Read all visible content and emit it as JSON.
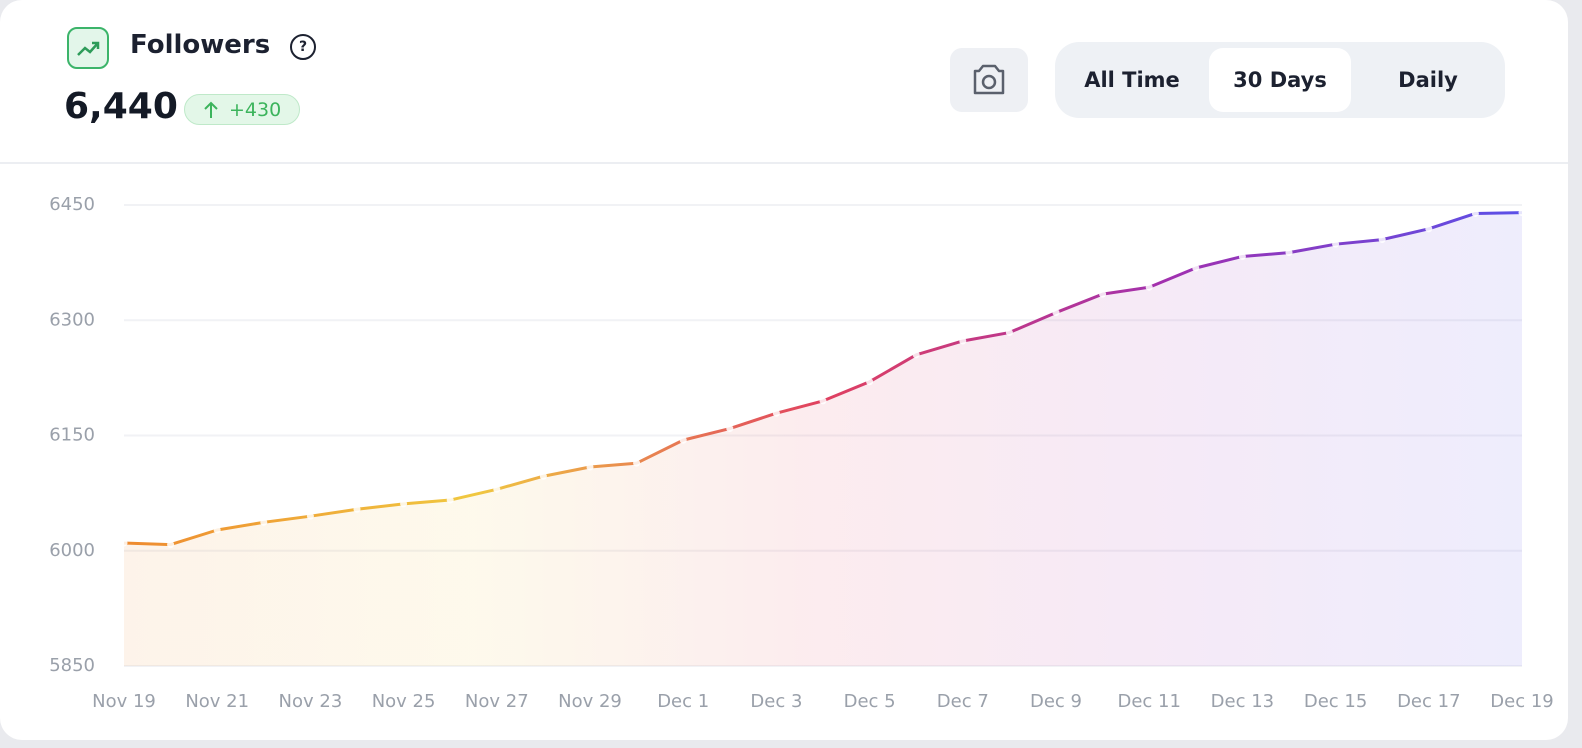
{
  "header": {
    "title": "Followers",
    "help": "?",
    "value": "6,440",
    "change": "+430"
  },
  "controls": {
    "tabs": [
      "All Time",
      "30 Days",
      "Daily"
    ],
    "selected": 1
  },
  "chart_data": {
    "type": "line",
    "categories": [
      "Nov 19",
      null,
      "Nov 21",
      null,
      "Nov 23",
      null,
      "Nov 25",
      null,
      "Nov 27",
      null,
      "Nov 29",
      null,
      "Dec 1",
      null,
      "Dec 3",
      null,
      "Dec 5",
      null,
      "Dec 7",
      null,
      "Dec 9",
      null,
      "Dec 11",
      null,
      "Dec 13",
      null,
      "Dec 15",
      null,
      "Dec 17",
      null,
      "Dec 19"
    ],
    "series": [
      {
        "name": "Followers",
        "gradient": [
          "#ee8a30",
          "#f0c840",
          "#e04060",
          "#a030b0",
          "#5a50e8"
        ],
        "values": [
          6010,
          6008,
          6027,
          6037,
          6045,
          6054,
          6061,
          6066,
          6080,
          6097,
          6109,
          6114,
          6144,
          6159,
          6179,
          6195,
          6220,
          6255,
          6273,
          6284,
          6310,
          6334,
          6343,
          6368,
          6383,
          6388,
          6399,
          6405,
          6419,
          6439,
          6440
        ]
      }
    ],
    "ylim": [
      5850,
      6450
    ],
    "yticks": [
      5850,
      6000,
      6150,
      6300,
      6450
    ],
    "grid": true
  }
}
